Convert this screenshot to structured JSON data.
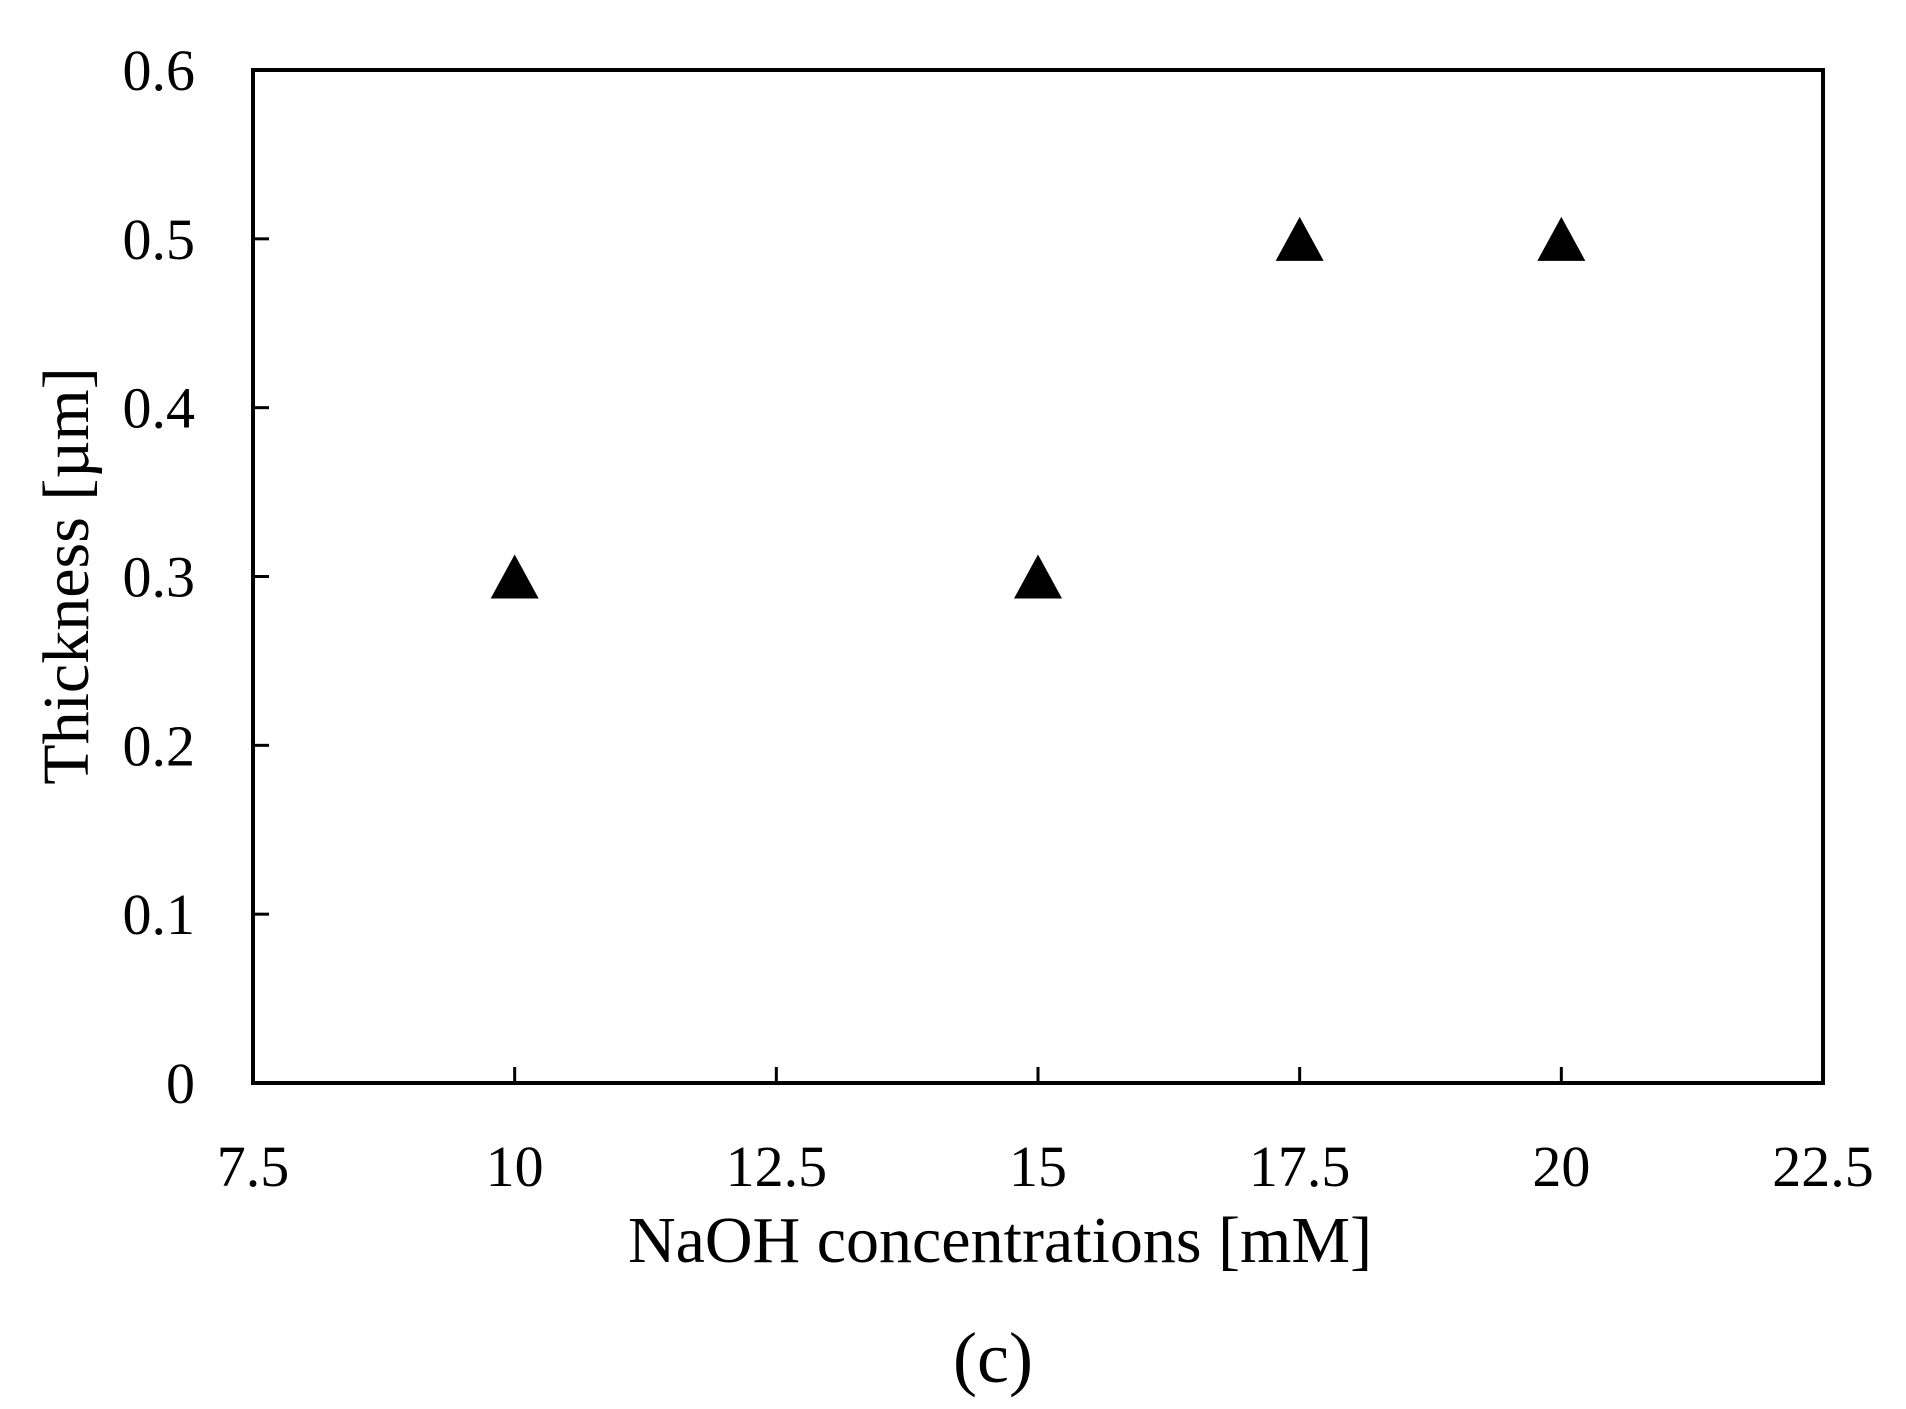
{
  "chart_data": {
    "type": "scatter",
    "title": "",
    "xlabel": "NaOH concentrations [mM]",
    "ylabel": "Thickness [µm]",
    "panel_label": "(c)",
    "xlim": [
      7.5,
      22.5
    ],
    "ylim": [
      0,
      0.6
    ],
    "xticks": [
      7.5,
      10,
      12.5,
      15,
      17.5,
      20,
      22.5
    ],
    "xtick_labels": [
      "7.5",
      "10",
      "12.5",
      "15",
      "17.5",
      "20",
      "22.5"
    ],
    "yticks": [
      0,
      0.1,
      0.2,
      0.3,
      0.4,
      0.5,
      0.6
    ],
    "ytick_labels": [
      "0",
      "0.1",
      "0.2",
      "0.3",
      "0.4",
      "0.5",
      "0.6"
    ],
    "grid": false,
    "legend": "none",
    "marker": "triangle",
    "marker_color": "#000000",
    "series": [
      {
        "x": [
          10,
          15,
          17.5,
          20
        ],
        "y": [
          0.3,
          0.3,
          0.5,
          0.5
        ]
      }
    ]
  }
}
